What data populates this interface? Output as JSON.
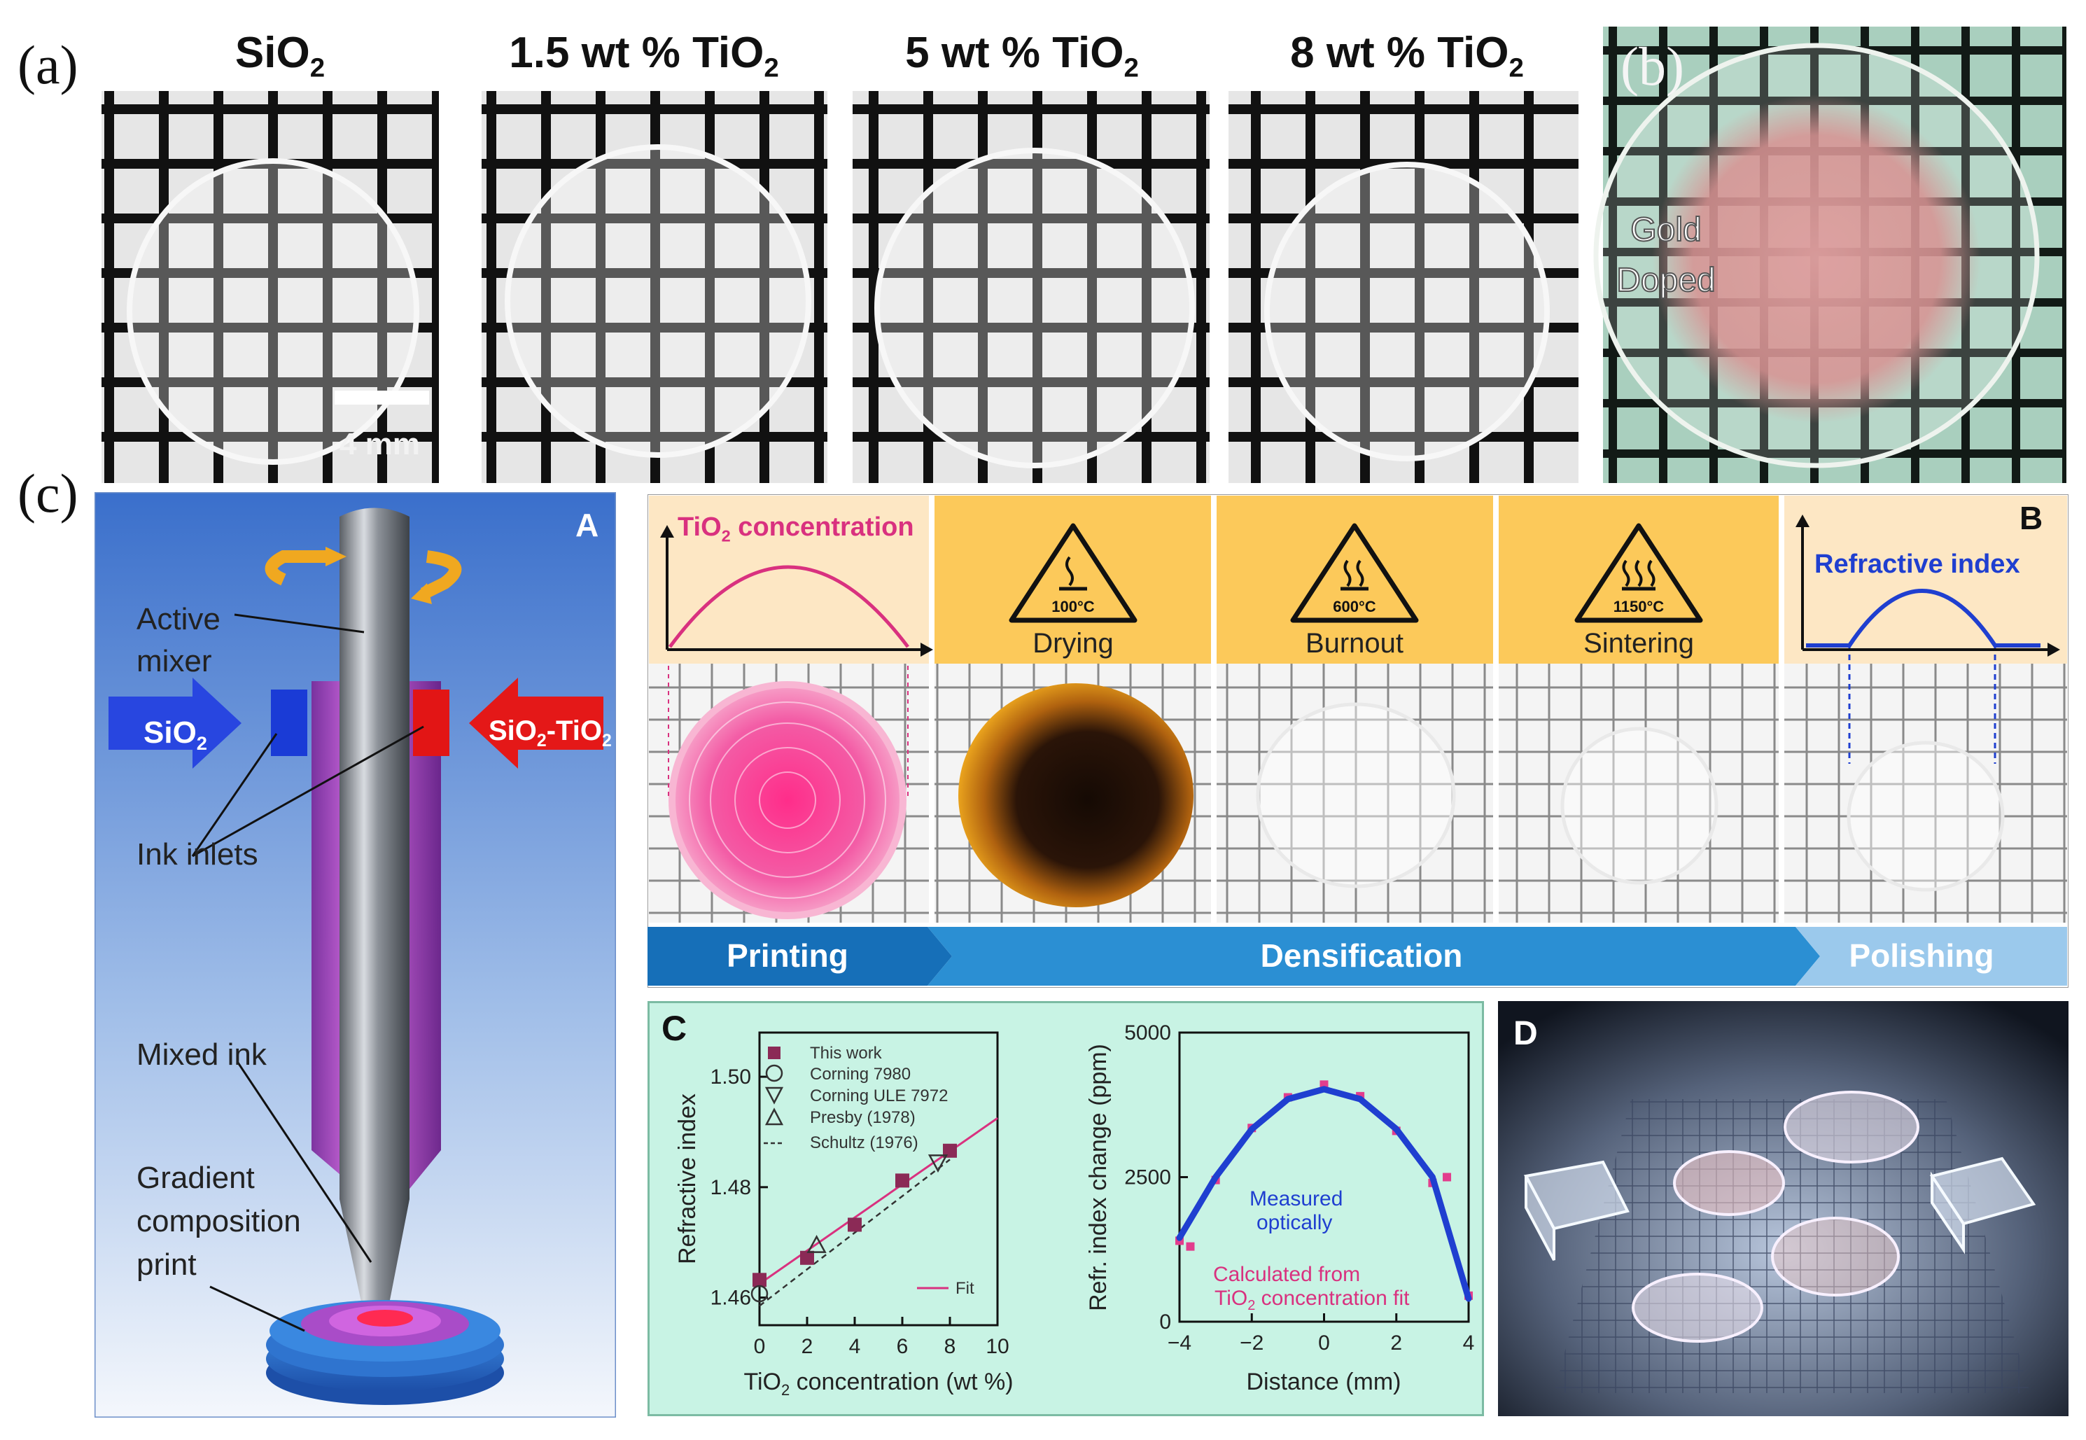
{
  "panel_labels": {
    "a": "(a)",
    "b": "(b)",
    "c": "(c)"
  },
  "panel_a": {
    "samples": [
      {
        "pre": "SiO",
        "sub": "2",
        "post": ""
      },
      {
        "pre": "1.5 wt % TiO",
        "sub": "2",
        "post": ""
      },
      {
        "pre": "5 wt % TiO",
        "sub": "2",
        "post": ""
      },
      {
        "pre": "8 wt % TiO",
        "sub": "2",
        "post": ""
      }
    ],
    "scale_bar": "4 mm"
  },
  "panel_b": {
    "label_line1": "Gold",
    "label_line2": "Doped"
  },
  "sub_A": {
    "letter": "A",
    "active_mixer_1": "Active",
    "active_mixer_2": "mixer",
    "sio2_pre": "SiO",
    "sio2_sub": "2",
    "sio2tio2_pre": "SiO",
    "sio2tio2_sub": "2",
    "sio2tio2_mid": "-TiO",
    "sio2tio2_sub2": "2",
    "ink_inlets": "Ink inlets",
    "mixed_ink": "Mixed ink",
    "gradient_1": "Gradient",
    "gradient_2": "composition",
    "gradient_3": "print"
  },
  "sub_B": {
    "letter": "B",
    "tio2_conc_pre": "TiO",
    "tio2_conc_sub": "2",
    "tio2_conc_post": " concentration",
    "temps": [
      "100°C",
      "600°C",
      "1150°C"
    ],
    "steps": [
      "Drying",
      "Burnout",
      "Sintering"
    ],
    "refractive_index": "Refractive index",
    "stages": [
      "Printing",
      "Densification",
      "Polishing"
    ]
  },
  "sub_C": {
    "letter": "C",
    "legend": [
      "This work",
      "Corning 7980",
      "Corning ULE 7972",
      "Presby (1978)",
      "Schultz (1976)"
    ],
    "fit_label": "Fit",
    "measured_1": "Measured",
    "measured_2": "optically",
    "calc_1": "Calculated from",
    "calc_2_pre": "TiO",
    "calc_2_sub": "2",
    "calc_2_post": " concentration fit"
  },
  "sub_D": {
    "letter": "D"
  },
  "chart_data": [
    {
      "type": "scatter",
      "title": "",
      "xlabel": "TiO2 concentration (wt %)",
      "ylabel": "Refractive index",
      "xlim": [
        0,
        10
      ],
      "ylim": [
        1.455,
        1.508
      ],
      "xticks": [
        "0",
        "2",
        "4",
        "6",
        "8",
        "10"
      ],
      "yticks": [
        "1.46",
        "1.48",
        "1.50"
      ],
      "series": [
        {
          "name": "This work",
          "x": [
            0,
            2,
            4,
            6,
            8
          ],
          "y": [
            1.4632,
            1.4672,
            1.4732,
            1.4812,
            1.4866
          ]
        },
        {
          "name": "Corning 7980",
          "x": [
            0
          ],
          "y": [
            1.4607
          ]
        },
        {
          "name": "Corning ULE 7972",
          "x": [
            7.5
          ],
          "y": [
            1.4845
          ]
        },
        {
          "name": "Presby (1978)",
          "x": [
            2.4
          ],
          "y": [
            1.4695
          ]
        },
        {
          "name": "Schultz (1976)",
          "x": [
            0,
            8
          ],
          "y": [
            1.4585,
            1.485
          ]
        },
        {
          "name": "Fit",
          "x": [
            0,
            10
          ],
          "y": [
            1.4625,
            1.4925
          ]
        }
      ]
    },
    {
      "type": "line",
      "title": "",
      "xlabel": "Distance (mm)",
      "ylabel": "Refr. index change (ppm)",
      "xlim": [
        -4,
        4
      ],
      "ylim": [
        0,
        5000
      ],
      "xticks": [
        "-4",
        "-2",
        "0",
        "2",
        "4"
      ],
      "yticks": [
        "0",
        "2500",
        "5000"
      ],
      "series": [
        {
          "name": "Measured optically",
          "x": [
            -4,
            -3,
            -2,
            -1,
            0,
            1,
            2,
            3,
            4
          ],
          "y": [
            1450,
            2500,
            3330,
            3850,
            4020,
            3850,
            3330,
            2500,
            400
          ]
        },
        {
          "name": "Calculated from TiO2 concentration fit",
          "x": [
            -4,
            -3.7,
            -3,
            -2,
            -1,
            0,
            1,
            2,
            3,
            3.4,
            4
          ],
          "y": [
            1400,
            1300,
            2450,
            3350,
            3880,
            4100,
            3900,
            3300,
            2400,
            2500,
            450
          ]
        }
      ]
    }
  ],
  "colors": {
    "pink": "#d9317f",
    "blue_curve": "#1f3fd0",
    "panel_c_bg": "#c8f3e4",
    "teal_bar": "#1b82c4"
  }
}
